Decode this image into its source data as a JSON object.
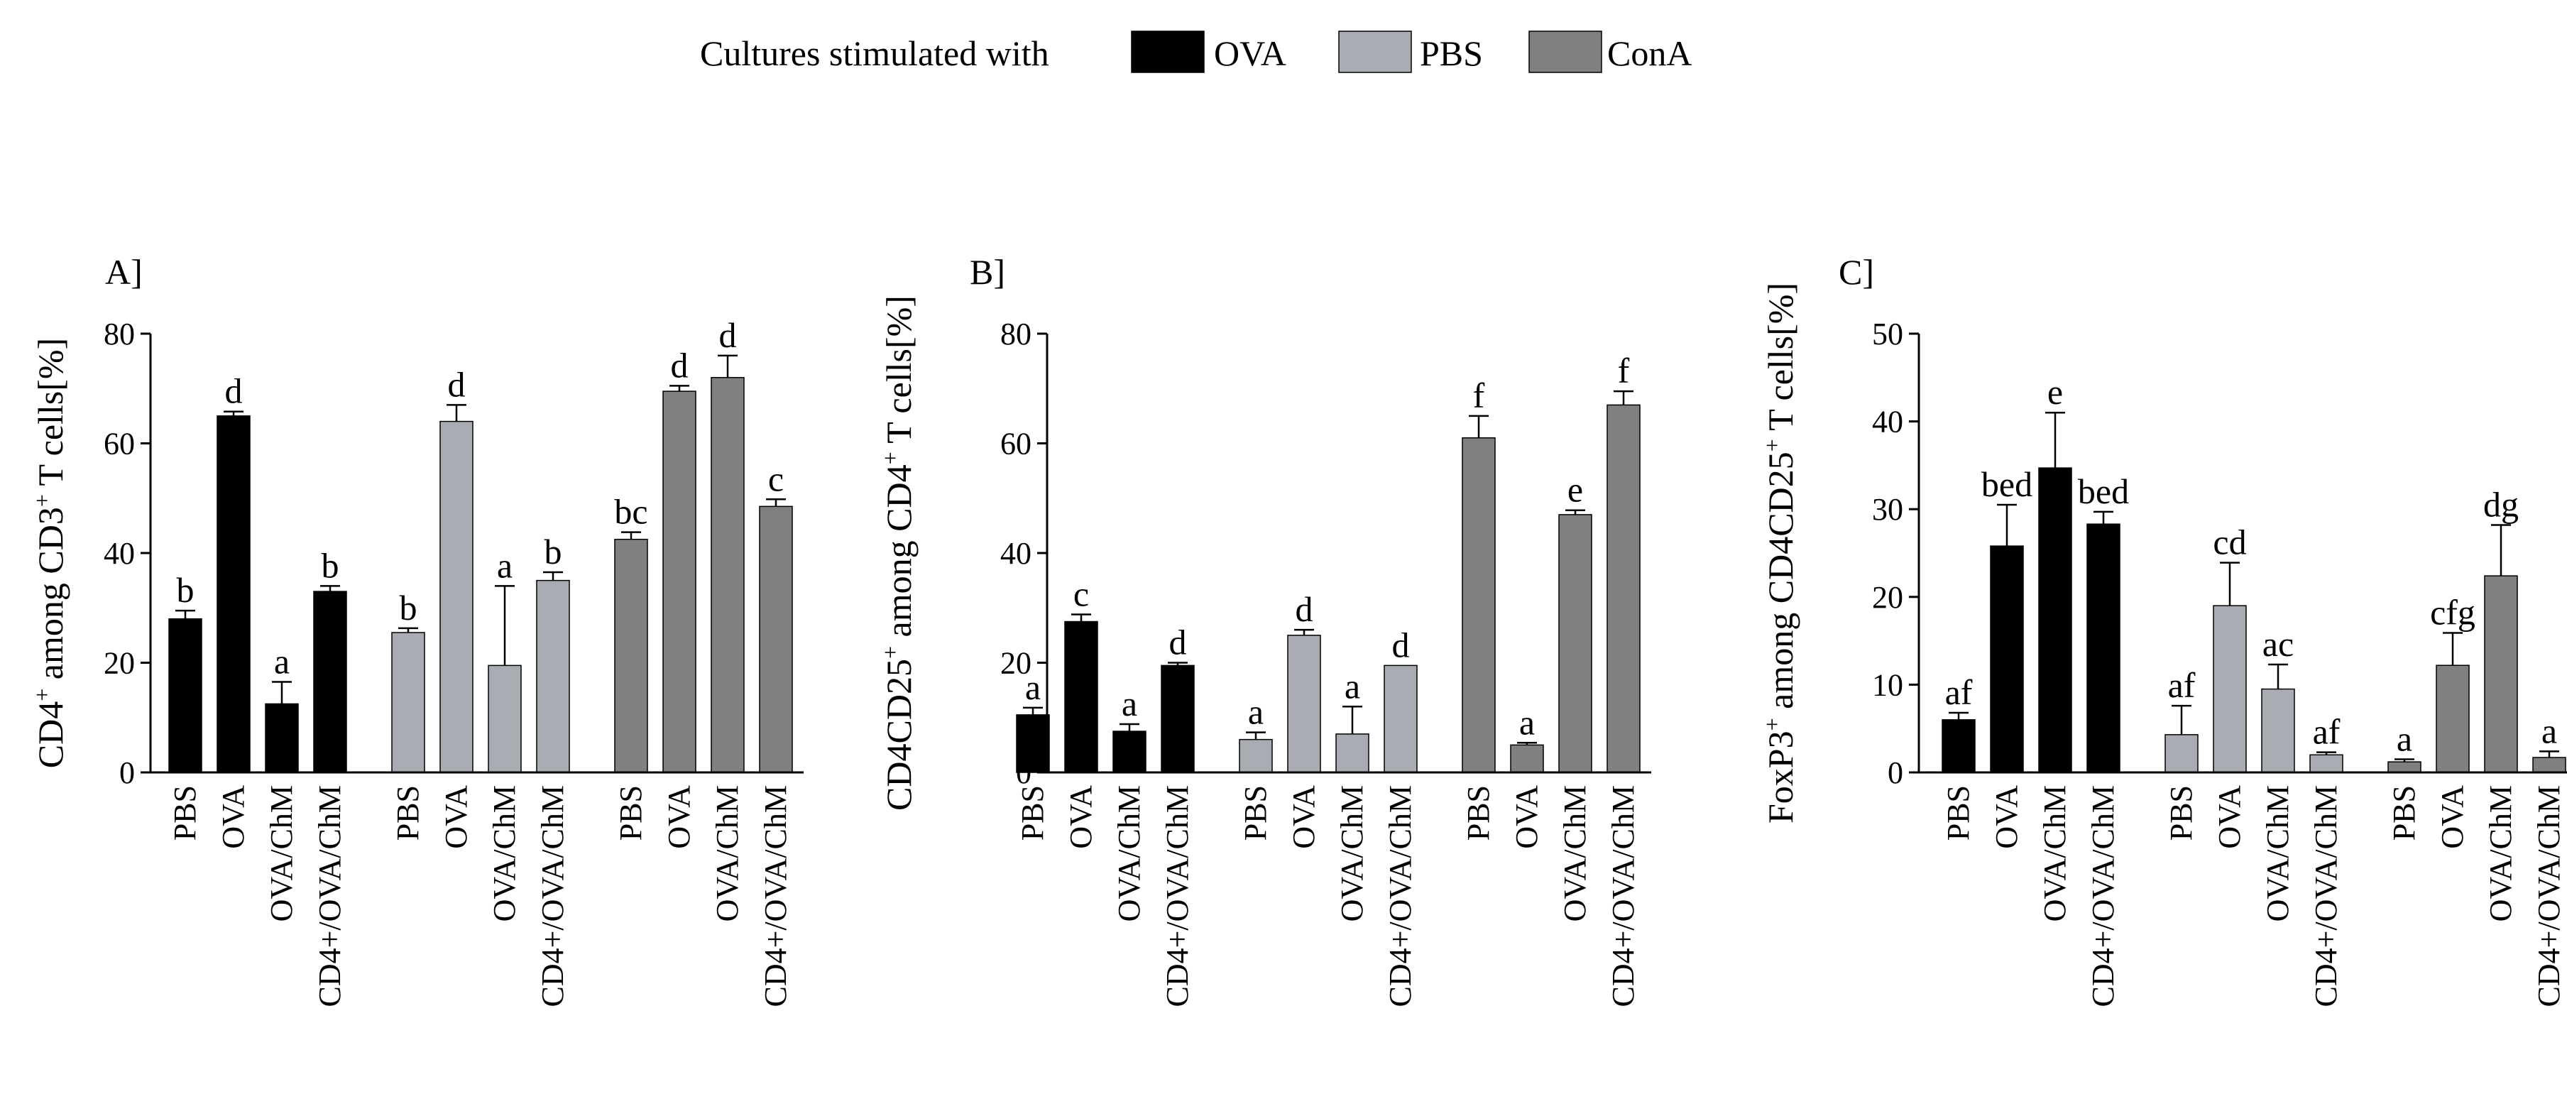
{
  "legend": {
    "prefix": "Cultures stimulated with",
    "items": [
      {
        "label": "OVA",
        "color": "#000000"
      },
      {
        "label": "PBS",
        "color": "#a9adb3"
      },
      {
        "label": "ConA",
        "color": "#808080"
      }
    ]
  },
  "chart_data": [
    {
      "type": "bar",
      "panel_label": "A]",
      "ylabel": "CD4+ among CD3+ T cells[%]",
      "ylabel_parts": [
        {
          "t": "CD4"
        },
        {
          "t": "+",
          "sup": true
        },
        {
          "t": " among CD3"
        },
        {
          "t": "+",
          "sup": true
        },
        {
          "t": " T cells[%]"
        }
      ],
      "ylim": [
        0,
        80
      ],
      "yticks": [
        0,
        20,
        40,
        60,
        80
      ],
      "categories": [
        "PBS",
        "OVA",
        "OVA/ChM",
        "CD4+/OVA/ChM"
      ],
      "series": [
        {
          "name": "OVA",
          "values": [
            28,
            65,
            12.5,
            33
          ],
          "errors": [
            1.5,
            0.8,
            4,
            1
          ],
          "letters": [
            "b",
            "d",
            "a",
            "b"
          ]
        },
        {
          "name": "PBS",
          "values": [
            25.5,
            64,
            19.5,
            35
          ],
          "errors": [
            0.8,
            3,
            14.5,
            1.5
          ],
          "letters": [
            "b",
            "d",
            "a",
            "b"
          ]
        },
        {
          "name": "ConA",
          "values": [
            42.5,
            69.5,
            72,
            48.5
          ],
          "errors": [
            1.3,
            1,
            4,
            1.3
          ],
          "letters": [
            "bc",
            "d",
            "d",
            "c"
          ]
        }
      ]
    },
    {
      "type": "bar",
      "panel_label": "B]",
      "ylabel": "CD4CD25+ among CD4+ T cells[%]",
      "ylabel_parts": [
        {
          "t": "CD4CD25"
        },
        {
          "t": "+",
          "sup": true
        },
        {
          "t": " among CD4"
        },
        {
          "t": "+",
          "sup": true
        },
        {
          "t": " T cells[%]"
        }
      ],
      "ylim": [
        0,
        80
      ],
      "yticks": [
        0,
        20,
        40,
        60,
        80
      ],
      "categories": [
        "PBS",
        "OVA",
        "OVA/ChM",
        "CD4+/OVA/ChM"
      ],
      "series": [
        {
          "name": "OVA",
          "values": [
            10.5,
            27.5,
            7.5,
            19.5
          ],
          "errors": [
            1.3,
            1.3,
            1.3,
            0.5
          ],
          "letters": [
            "a",
            "c",
            "a",
            "d"
          ]
        },
        {
          "name": "PBS",
          "values": [
            6,
            25,
            7,
            19.5
          ],
          "errors": [
            1.3,
            1,
            5,
            0
          ],
          "letters": [
            "a",
            "d",
            "a",
            "d"
          ]
        },
        {
          "name": "ConA",
          "values": [
            61,
            5,
            47,
            67
          ],
          "errors": [
            4,
            0.4,
            0.8,
            2.5
          ],
          "letters": [
            "f",
            "a",
            "e",
            "f"
          ]
        }
      ]
    },
    {
      "type": "bar",
      "panel_label": "C]",
      "ylabel": "FoxP3+ among CD4CD25+ T cells[%]",
      "ylabel_parts": [
        {
          "t": "FoxP3"
        },
        {
          "t": "+",
          "sup": true
        },
        {
          "t": " among CD4CD25"
        },
        {
          "t": "+",
          "sup": true
        },
        {
          "t": " T cells[%]"
        }
      ],
      "ylim": [
        0,
        50
      ],
      "yticks": [
        0,
        10,
        20,
        30,
        40,
        50
      ],
      "categories": [
        "PBS",
        "OVA",
        "OVA/ChM",
        "CD4+/OVA/ChM"
      ],
      "series": [
        {
          "name": "OVA",
          "values": [
            6,
            25.8,
            34.7,
            28.3
          ],
          "errors": [
            0.8,
            4.7,
            6.3,
            1.4
          ],
          "letters": [
            "af",
            "bed",
            "e",
            "bed"
          ]
        },
        {
          "name": "PBS",
          "values": [
            4.3,
            19,
            9.5,
            2
          ],
          "errors": [
            3.3,
            4.9,
            2.8,
            0.3
          ],
          "letters": [
            "af",
            "cd",
            "ac",
            "af"
          ]
        },
        {
          "name": "ConA",
          "values": [
            1.2,
            12.2,
            22.4,
            1.7
          ],
          "errors": [
            0.3,
            3.7,
            5.8,
            0.7
          ],
          "letters": [
            "a",
            "cfg",
            "dg",
            "a"
          ]
        }
      ]
    }
  ]
}
